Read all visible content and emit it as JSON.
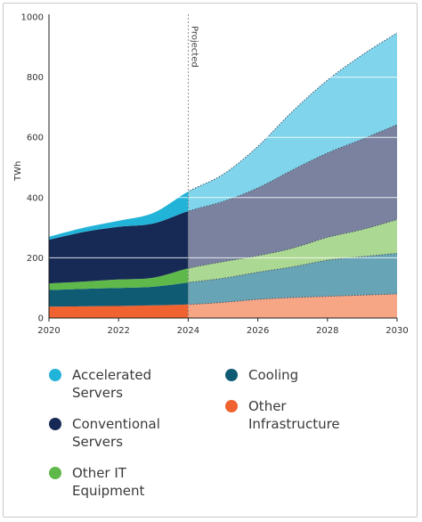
{
  "chart_data": {
    "type": "area",
    "stacked": true,
    "ylabel": "TWh",
    "xlabel": "",
    "ylim": [
      0,
      1000
    ],
    "xlim": [
      2020,
      2030
    ],
    "yticks": [
      0,
      200,
      400,
      600,
      800,
      1000
    ],
    "xticks": [
      2020,
      2022,
      2024,
      2026,
      2028,
      2030
    ],
    "grid": true,
    "annotation": "Projected",
    "projection_start": 2024,
    "x": [
      2020,
      2021,
      2022,
      2023,
      2024,
      2025,
      2026,
      2027,
      2028,
      2029,
      2030
    ],
    "series": [
      {
        "name": "Other Infrastructure",
        "color": "#f0622f",
        "projected_color": "#f6a585",
        "values": [
          38,
          39,
          40,
          42,
          45,
          52,
          62,
          68,
          72,
          76,
          80
        ]
      },
      {
        "name": "Cooling",
        "color": "#0f5b73",
        "projected_color": "#67a4b5",
        "values": [
          55,
          58,
          60,
          62,
          73,
          80,
          90,
          102,
          120,
          128,
          135
        ]
      },
      {
        "name": "Other IT Equipment",
        "color": "#5eb84a",
        "projected_color": "#abd893",
        "values": [
          22,
          24,
          28,
          30,
          47,
          55,
          55,
          62,
          76,
          90,
          112
        ]
      },
      {
        "name": "Conventional Servers",
        "color": "#162a55",
        "projected_color": "#7a82a0",
        "values": [
          145,
          165,
          175,
          180,
          190,
          200,
          225,
          260,
          280,
          300,
          315
        ]
      },
      {
        "name": "Accelerated Servers",
        "color": "#22b3d8",
        "projected_color": "#80d4eb",
        "values": [
          10,
          14,
          20,
          35,
          65,
          90,
          138,
          195,
          242,
          280,
          305
        ]
      }
    ]
  },
  "legend": [
    {
      "label": "Accelerated\nServers",
      "color": "#22b3d8"
    },
    {
      "label": "Conventional\nServers",
      "color": "#162a55"
    },
    {
      "label": "Other IT\nEquipment",
      "color": "#5eb84a"
    },
    {
      "label": "Cooling",
      "color": "#0f5b73"
    },
    {
      "label": "Other\nInfrastructure",
      "color": "#f0622f"
    }
  ]
}
